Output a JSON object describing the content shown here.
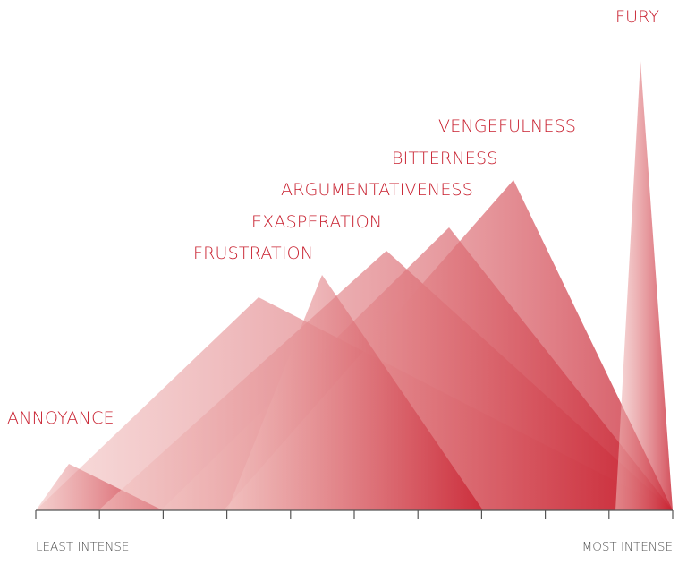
{
  "colors": {
    "accent": "#c8202f",
    "peak_start": "#f2c4c2",
    "axis": "#555555",
    "axis_text": "#555555"
  },
  "emotions": [
    {
      "id": "annoyance",
      "label": "ANNOYANCE"
    },
    {
      "id": "frustration",
      "label": "FRUSTRATION"
    },
    {
      "id": "exasperation",
      "label": "EXASPERATION"
    },
    {
      "id": "argumentativeness",
      "label": "ARGUMENTATIVENESS"
    },
    {
      "id": "bitterness",
      "label": "BITTERNESS"
    },
    {
      "id": "vengefulness",
      "label": "VENGEFULNESS"
    },
    {
      "id": "fury",
      "label": "FURY"
    }
  ],
  "axis": {
    "left_label": "LEAST INTENSE",
    "right_label": "MOST INTENSE",
    "tick_count": 11
  }
}
